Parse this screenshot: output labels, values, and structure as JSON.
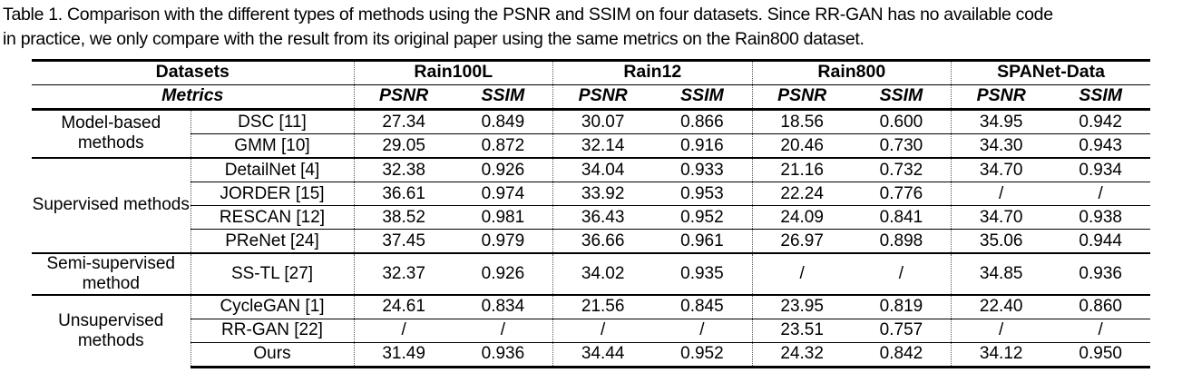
{
  "caption": {
    "line1": "Table 1. Comparison with the different types of methods using the PSNR and SSIM on four datasets. Since RR-GAN has no available code",
    "line2": "in practice, we only compare with the result from its original paper using the same metrics on the Rain800 dataset."
  },
  "table": {
    "header": {
      "datasets_label": "Datasets",
      "metrics_label": "Metrics",
      "dataset_names": [
        "Rain100L",
        "Rain12",
        "Rain800",
        "SPANet-Data"
      ],
      "metric_names": {
        "psnr": "PSNR",
        "ssim": "SSIM"
      }
    },
    "groups": [
      {
        "category": "Model-based methods",
        "rows": [
          {
            "method": "DSC [11]",
            "values": [
              "27.34",
              "0.849",
              "30.07",
              "0.866",
              "18.56",
              "0.600",
              "34.95",
              "0.942"
            ]
          },
          {
            "method": "GMM [10]",
            "values": [
              "29.05",
              "0.872",
              "32.14",
              "0.916",
              "20.46",
              "0.730",
              "34.30",
              "0.943"
            ]
          }
        ]
      },
      {
        "category": "Supervised methods",
        "rows": [
          {
            "method": "DetailNet [4]",
            "values": [
              "32.38",
              "0.926",
              "34.04",
              "0.933",
              "21.16",
              "0.732",
              "34.70",
              "0.934"
            ]
          },
          {
            "method": "JORDER [15]",
            "values": [
              "36.61",
              "0.974",
              "33.92",
              "0.953",
              "22.24",
              "0.776",
              "/",
              "/"
            ]
          },
          {
            "method": "RESCAN [12]",
            "values": [
              "38.52",
              "0.981",
              "36.43",
              "0.952",
              "24.09",
              "0.841",
              "34.70",
              "0.938"
            ]
          },
          {
            "method": "PReNet [24]",
            "values": [
              "37.45",
              "0.979",
              "36.66",
              "0.961",
              "26.97",
              "0.898",
              "35.06",
              "0.944"
            ]
          }
        ]
      },
      {
        "category": "Semi-supervised method",
        "rows": [
          {
            "method": "SS-TL [27]",
            "values": [
              "32.37",
              "0.926",
              "34.02",
              "0.935",
              "/",
              "/",
              "34.85",
              "0.936"
            ]
          }
        ]
      },
      {
        "category": "Unsupervised methods",
        "rows": [
          {
            "method": "CycleGAN [1]",
            "values": [
              "24.61",
              "0.834",
              "21.56",
              "0.845",
              "23.95",
              "0.819",
              "22.40",
              "0.860"
            ]
          },
          {
            "method": "RR-GAN [22]",
            "values": [
              "/",
              "/",
              "/",
              "/",
              "23.51",
              "0.757",
              "/",
              "/"
            ]
          },
          {
            "method": "Ours",
            "values": [
              "31.49",
              "0.936",
              "34.44",
              "0.952",
              "24.32",
              "0.842",
              "34.12",
              "0.950"
            ]
          }
        ]
      }
    ]
  }
}
